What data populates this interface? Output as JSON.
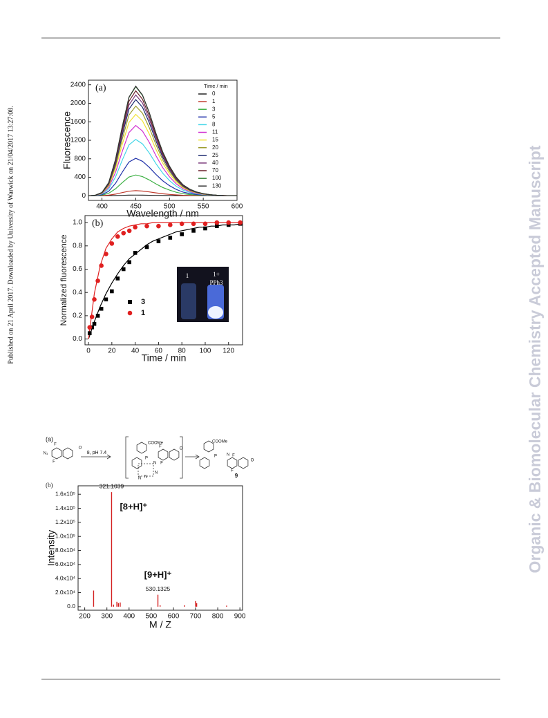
{
  "side_text": "Published on 21 April 2017. Downloaded by University of Warwick on 21/04/2017 13:27:08.",
  "watermark": "Organic & Biomolecular Chemistry Accepted Manuscript",
  "scheme": {
    "panel": "(a)",
    "reagent": "8, pH 7.4",
    "labels": [
      "F",
      "N₃",
      "F",
      "O",
      "COOMe",
      "P",
      "N",
      "N",
      "N",
      "N",
      "F",
      "F",
      "O",
      "COOMe",
      "P",
      "N",
      "F",
      "F",
      "O",
      "9"
    ]
  },
  "chart_data": [
    {
      "type": "line",
      "panel": "(a)",
      "xlabel": "Wavelength / nm",
      "ylabel": "Fluorescence",
      "legend_title": "Time / min",
      "legend": "upper right",
      "xlim": [
        380,
        600
      ],
      "ylim": [
        -100,
        2500
      ],
      "xticks": [
        400,
        450,
        500,
        550,
        600
      ],
      "yticks": [
        0,
        400,
        800,
        1200,
        1600,
        2000,
        2400
      ],
      "x": [
        380,
        390,
        400,
        410,
        420,
        430,
        440,
        450,
        460,
        470,
        480,
        490,
        500,
        510,
        520,
        530,
        540,
        550,
        560,
        570,
        580,
        590,
        600
      ],
      "series": [
        {
          "name": "0",
          "color": "#222222",
          "values": [
            0,
            0,
            0,
            2,
            5,
            9,
            14,
            15,
            14,
            11,
            9,
            6,
            4,
            3,
            2,
            1,
            1,
            0,
            0,
            0,
            0,
            0,
            0
          ]
        },
        {
          "name": "1",
          "color": "#c0392b",
          "values": [
            0,
            1,
            3,
            13,
            36,
            69,
            99,
            110,
            101,
            84,
            63,
            44,
            30,
            19,
            11,
            7,
            4,
            2,
            1,
            1,
            0,
            0,
            0
          ]
        },
        {
          "name": "3",
          "color": "#3cb043",
          "values": [
            0,
            2,
            14,
            54,
            149,
            284,
            405,
            450,
            414,
            342,
            257,
            180,
            122,
            77,
            45,
            27,
            16,
            9,
            5,
            2,
            1,
            0,
            0
          ]
        },
        {
          "name": "5",
          "color": "#2233aa",
          "values": [
            0,
            4,
            24,
            97,
            267,
            510,
            729,
            810,
            745,
            616,
            462,
            324,
            219,
            138,
            81,
            49,
            28,
            16,
            8,
            4,
            2,
            1,
            0
          ]
        },
        {
          "name": "8",
          "color": "#41d6e8",
          "values": [
            0,
            6,
            37,
            146,
            403,
            769,
            1098,
            1220,
            1122,
            927,
            695,
            488,
            329,
            207,
            122,
            73,
            43,
            24,
            12,
            6,
            2,
            1,
            0
          ]
        },
        {
          "name": "11",
          "color": "#d130d1",
          "values": [
            0,
            8,
            46,
            182,
            502,
            958,
            1368,
            1520,
            1398,
            1155,
            866,
            608,
            410,
            258,
            152,
            91,
            53,
            30,
            15,
            8,
            3,
            2,
            0
          ]
        },
        {
          "name": "15",
          "color": "#f2e233",
          "values": [
            0,
            9,
            53,
            211,
            581,
            1109,
            1584,
            1760,
            1619,
            1338,
            1003,
            704,
            475,
            299,
            176,
            106,
            62,
            35,
            18,
            9,
            4,
            2,
            0
          ]
        },
        {
          "name": "20",
          "color": "#9a9a2a",
          "values": [
            0,
            10,
            58,
            233,
            640,
            1222,
            1746,
            1940,
            1785,
            1474,
            1106,
            776,
            524,
            330,
            194,
            116,
            68,
            39,
            19,
            10,
            4,
            2,
            0
          ]
        },
        {
          "name": "25",
          "color": "#1c2a6e",
          "values": [
            0,
            10,
            62,
            250,
            686,
            1310,
            1872,
            2080,
            1914,
            1581,
            1186,
            832,
            562,
            354,
            208,
            125,
            73,
            42,
            21,
            10,
            4,
            2,
            0
          ]
        },
        {
          "name": "40",
          "color": "#7b3a7b",
          "values": [
            0,
            11,
            65,
            262,
            719,
            1373,
            1962,
            2180,
            2006,
            1657,
            1243,
            872,
            589,
            371,
            218,
            131,
            76,
            44,
            22,
            11,
            4,
            2,
            0
          ]
        },
        {
          "name": "70",
          "color": "#6b1f2a",
          "values": [
            0,
            11,
            68,
            272,
            749,
            1430,
            2043,
            2270,
            2088,
            1725,
            1294,
            908,
            613,
            386,
            227,
            136,
            79,
            45,
            23,
            11,
            5,
            2,
            0
          ]
        },
        {
          "name": "100",
          "color": "#2e7d32",
          "values": [
            0,
            12,
            71,
            283,
            779,
            1487,
            2124,
            2360,
            2171,
            1794,
            1345,
            944,
            637,
            401,
            236,
            142,
            83,
            47,
            24,
            12,
            5,
            2,
            0
          ]
        },
        {
          "name": "130",
          "color": "#333333",
          "values": [
            0,
            12,
            71,
            284,
            782,
            1493,
            2133,
            2370,
            2180,
            1801,
            1351,
            948,
            640,
            403,
            237,
            142,
            83,
            47,
            24,
            12,
            5,
            2,
            0
          ]
        }
      ]
    },
    {
      "type": "scatter",
      "panel": "(b)",
      "xlabel": "Time  / min",
      "ylabel": "Normalized fluorescence",
      "legend": "lower center",
      "xlim": [
        -3,
        132
      ],
      "ylim": [
        -0.05,
        1.06
      ],
      "xticks": [
        0,
        20,
        40,
        60,
        80,
        100,
        120
      ],
      "yticks": [
        {
          "value": 0,
          "label": "0.0"
        },
        0.2,
        0.4,
        0.6,
        0.8,
        {
          "value": 1,
          "label": "1.0"
        }
      ],
      "inset_labels": [
        "1",
        "1+",
        "PPh3"
      ],
      "x": [
        1,
        3,
        5,
        8,
        11,
        15,
        20,
        25,
        30,
        35,
        40,
        50,
        60,
        70,
        80,
        90,
        100,
        110,
        120,
        130
      ],
      "series": [
        {
          "name": "3",
          "color": "#000000",
          "marker": "square",
          "values": [
            0.05,
            0.1,
            0.13,
            0.2,
            0.26,
            0.34,
            0.41,
            0.52,
            0.6,
            0.66,
            0.74,
            0.79,
            0.84,
            0.87,
            0.9,
            0.93,
            0.95,
            0.97,
            0.98,
            0.99
          ]
        },
        {
          "name": "1",
          "color": "#e02020",
          "marker": "circle",
          "values": [
            0.1,
            0.19,
            0.34,
            0.5,
            0.63,
            0.73,
            0.82,
            0.88,
            0.91,
            0.93,
            0.96,
            0.97,
            0.97,
            0.98,
            0.99,
            0.99,
            0.99,
            1.0,
            1.0,
            1.0
          ]
        }
      ],
      "fit_x": [
        0,
        5,
        10,
        15,
        20,
        25,
        30,
        35,
        40,
        45,
        50,
        55,
        60,
        65,
        70,
        75,
        80,
        85,
        90,
        95,
        100,
        105,
        110,
        115,
        120,
        125,
        130
      ],
      "fits": [
        {
          "color": "#000000",
          "values": [
            0,
            0.15,
            0.28,
            0.39,
            0.48,
            0.56,
            0.63,
            0.69,
            0.73,
            0.77,
            0.81,
            0.84,
            0.86,
            0.88,
            0.9,
            0.92,
            0.93,
            0.94,
            0.95,
            0.96,
            0.96,
            0.97,
            0.97,
            0.98,
            0.98,
            0.98,
            0.99
          ]
        },
        {
          "color": "#e02020",
          "values": [
            0,
            0.39,
            0.63,
            0.78,
            0.86,
            0.92,
            0.95,
            0.97,
            0.98,
            0.99,
            0.99,
            1,
            1,
            1,
            1,
            1,
            1,
            1,
            1,
            1,
            1,
            1,
            1,
            1,
            1,
            1,
            1
          ]
        }
      ]
    },
    {
      "type": "bar",
      "panel": "(b)",
      "xlabel": "M / Z",
      "ylabel": "Intensity",
      "color": "#d42020",
      "xlim": [
        170,
        912
      ],
      "ylim": [
        -5000,
        172000
      ],
      "xticks": [
        200,
        300,
        400,
        500,
        600,
        700,
        800,
        900
      ],
      "yticks": [
        {
          "value": 0,
          "label": "0.0"
        },
        {
          "value": 20000,
          "label": "2.0x10⁴"
        },
        {
          "value": 40000,
          "label": "4.0x10⁴"
        },
        {
          "value": 60000,
          "label": "6.0x10⁴"
        },
        {
          "value": 80000,
          "label": "8.0x10⁴"
        },
        {
          "value": 100000,
          "label": "1.0x10⁵"
        },
        {
          "value": 120000,
          "label": "1.2x10⁵"
        },
        {
          "value": 140000,
          "label": "1.4x10⁵"
        },
        {
          "value": 160000,
          "label": "1.6x10⁵"
        }
      ],
      "x": [
        240,
        321.1039,
        330,
        345,
        352,
        360,
        530.1325,
        540,
        650,
        700,
        705,
        840
      ],
      "values": [
        23000,
        163000,
        3000,
        7000,
        5000,
        6000,
        17000,
        2000,
        2000,
        8000,
        5000,
        1500
      ],
      "x_labels": [
        null,
        "321.1039",
        null,
        null,
        null,
        null,
        "530.1325",
        null,
        null,
        null,
        null,
        null
      ],
      "ion_labels": [
        null,
        "[8+H]⁺",
        null,
        null,
        null,
        null,
        "[9+H]⁺",
        null,
        null,
        null,
        null,
        null
      ]
    }
  ]
}
